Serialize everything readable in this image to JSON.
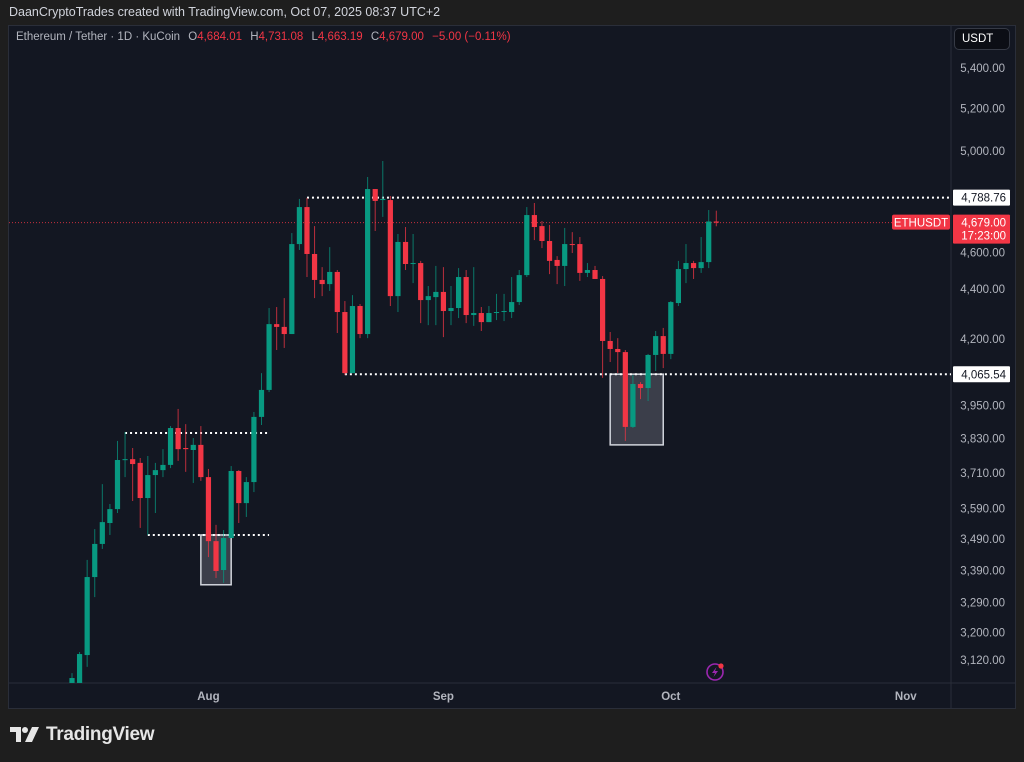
{
  "credit": "DaanCryptoTrades created with TradingView.com, Oct 07, 2025 08:37 UTC+2",
  "legend": {
    "symbol": "Ethereum / Tether · 1D · KuCoin",
    "open_label": "O",
    "open": "4,684.01",
    "high_label": "H",
    "high": "4,731.08",
    "low_label": "L",
    "low": "4,663.19",
    "close_label": "C",
    "close": "4,679.00",
    "change": "−5.00 (−0.11%)"
  },
  "currency": "USDT",
  "logo_text": "TradingView",
  "colors": {
    "up": "#089981",
    "down": "#f23645",
    "background": "#131722",
    "level_line": "#ffffff",
    "last_price": "#f23645",
    "alert_icon": "#9c27b0"
  },
  "icons": {
    "alert": "lightning-alert-icon",
    "logo": "tradingview-logo-icon"
  },
  "chart_data": {
    "type": "candlestick",
    "scale": "log",
    "ylim": [
      3070,
      5520
    ],
    "xlim": [
      "2025-07-13",
      "2025-11-05"
    ],
    "grid": false,
    "price_ticks": [
      5400,
      5200,
      5000,
      4600,
      4400,
      4200,
      3950,
      3830,
      3710,
      3590,
      3490,
      3390,
      3290,
      3200,
      3120
    ],
    "price_tick_labels": [
      "5,400.00",
      "5,200.00",
      "5,000.00",
      "4,600.00",
      "4,400.00",
      "4,200.00",
      "3,950.00",
      "3,830.00",
      "3,710.00",
      "3,590.00",
      "3,490.00",
      "3,390.00",
      "3,290.00",
      "3,200.00",
      "3,120.00"
    ],
    "time_ticks": [
      {
        "date": "2025-08-01",
        "label": "Aug"
      },
      {
        "date": "2025-09-01",
        "label": "Sep"
      },
      {
        "date": "2025-10-01",
        "label": "Oct"
      },
      {
        "date": "2025-11-01",
        "label": "Nov"
      }
    ],
    "last_price": {
      "value": 4679.0,
      "symbol": "ETHUSDT",
      "label": "4,679.00",
      "countdown": "17:23:00"
    },
    "levels": [
      {
        "value": 4788.76,
        "label": "4,788.76",
        "from": "2025-08-14"
      },
      {
        "value": 4065.54,
        "label": "4,065.54",
        "from": "2025-08-19"
      }
    ],
    "range_lines": [
      {
        "value": 3850,
        "from": "2025-07-21",
        "to": "2025-08-09"
      },
      {
        "value": 3503,
        "from": "2025-07-24",
        "to": "2025-08-09"
      }
    ],
    "boxes": [
      {
        "from": "2025-07-31",
        "to": "2025-08-04",
        "top": 3503,
        "bottom": 3345
      },
      {
        "from": "2025-09-23",
        "to": "2025-09-30",
        "top": 4066,
        "bottom": 3808
      }
    ],
    "columns": [
      "date",
      "open",
      "high",
      "low",
      "close"
    ],
    "candles": [
      [
        "2025-07-14",
        3054,
        3082,
        3034,
        3068
      ],
      [
        "2025-07-15",
        3054,
        3143,
        3034,
        3137
      ],
      [
        "2025-07-16",
        3134,
        3423,
        3100,
        3369
      ],
      [
        "2025-07-17",
        3369,
        3522,
        3307,
        3474
      ],
      [
        "2025-07-18",
        3474,
        3672,
        3458,
        3545
      ],
      [
        "2025-07-19",
        3542,
        3605,
        3503,
        3588
      ],
      [
        "2025-07-20",
        3588,
        3822,
        3575,
        3755
      ],
      [
        "2025-07-21",
        3755,
        3854,
        3696,
        3758
      ],
      [
        "2025-07-22",
        3758,
        3797,
        3615,
        3741
      ],
      [
        "2025-07-23",
        3745,
        3762,
        3526,
        3625
      ],
      [
        "2025-07-24",
        3625,
        3769,
        3503,
        3703
      ],
      [
        "2025-07-25",
        3703,
        3745,
        3575,
        3720
      ],
      [
        "2025-07-26",
        3720,
        3793,
        3696,
        3738
      ],
      [
        "2025-07-27",
        3738,
        3875,
        3727,
        3868
      ],
      [
        "2025-07-28",
        3868,
        3937,
        3752,
        3793
      ],
      [
        "2025-07-29",
        3797,
        3882,
        3714,
        3793
      ],
      [
        "2025-07-30",
        3790,
        3832,
        3676,
        3808
      ],
      [
        "2025-07-31",
        3808,
        3875,
        3683,
        3696
      ],
      [
        "2025-08-01",
        3696,
        3724,
        3432,
        3483
      ],
      [
        "2025-08-02",
        3483,
        3536,
        3366,
        3388
      ],
      [
        "2025-08-03",
        3391,
        3519,
        3351,
        3493
      ],
      [
        "2025-08-04",
        3493,
        3734,
        3493,
        3717
      ],
      [
        "2025-08-05",
        3717,
        3720,
        3542,
        3608
      ],
      [
        "2025-08-06",
        3608,
        3696,
        3562,
        3679
      ],
      [
        "2025-08-07",
        3679,
        3926,
        3645,
        3908
      ],
      [
        "2025-08-08",
        3908,
        4070,
        3879,
        4007
      ],
      [
        "2025-08-09",
        4007,
        4323,
        3999,
        4259
      ],
      [
        "2025-08-10",
        4259,
        4327,
        4158,
        4248
      ],
      [
        "2025-08-11",
        4248,
        4363,
        4166,
        4220
      ],
      [
        "2025-08-12",
        4220,
        4634,
        4220,
        4587
      ],
      [
        "2025-08-13",
        4587,
        4783,
        4562,
        4747
      ],
      [
        "2025-08-14",
        4747,
        4787,
        4449,
        4545
      ],
      [
        "2025-08-15",
        4545,
        4664,
        4363,
        4437
      ],
      [
        "2025-08-16",
        4437,
        4490,
        4371,
        4420
      ],
      [
        "2025-08-17",
        4420,
        4574,
        4392,
        4470
      ],
      [
        "2025-08-18",
        4470,
        4478,
        4224,
        4307
      ],
      [
        "2025-08-19",
        4307,
        4351,
        4063,
        4070
      ],
      [
        "2025-08-20",
        4070,
        4375,
        4070,
        4331
      ],
      [
        "2025-08-21",
        4331,
        4339,
        4204,
        4220
      ],
      [
        "2025-08-22",
        4220,
        4881,
        4204,
        4827
      ],
      [
        "2025-08-23",
        4827,
        4827,
        4643,
        4774
      ],
      [
        "2025-08-24",
        4778,
        4954,
        4704,
        4783
      ],
      [
        "2025-08-25",
        4778,
        4796,
        4331,
        4371
      ],
      [
        "2025-08-26",
        4371,
        4630,
        4307,
        4596
      ],
      [
        "2025-08-27",
        4596,
        4660,
        4478,
        4503
      ],
      [
        "2025-08-28",
        4503,
        4630,
        4424,
        4507
      ],
      [
        "2025-08-29",
        4507,
        4516,
        4263,
        4355
      ],
      [
        "2025-08-30",
        4355,
        4412,
        4255,
        4371
      ],
      [
        "2025-08-31",
        4367,
        4495,
        4255,
        4388
      ],
      [
        "2025-09-01",
        4388,
        4490,
        4208,
        4311
      ],
      [
        "2025-09-02",
        4311,
        4412,
        4255,
        4323
      ],
      [
        "2025-09-03",
        4323,
        4486,
        4283,
        4449
      ],
      [
        "2025-09-04",
        4449,
        4478,
        4263,
        4295
      ],
      [
        "2025-09-05",
        4295,
        4490,
        4252,
        4303
      ],
      [
        "2025-09-06",
        4303,
        4327,
        4232,
        4267
      ],
      [
        "2025-09-07",
        4267,
        4331,
        4267,
        4303
      ],
      [
        "2025-09-08",
        4303,
        4380,
        4275,
        4307
      ],
      [
        "2025-09-09",
        4307,
        4380,
        4271,
        4311
      ],
      [
        "2025-09-10",
        4307,
        4449,
        4283,
        4347
      ],
      [
        "2025-09-11",
        4347,
        4478,
        4335,
        4457
      ],
      [
        "2025-09-12",
        4457,
        4747,
        4449,
        4712
      ],
      [
        "2025-09-13",
        4712,
        4765,
        4604,
        4660
      ],
      [
        "2025-09-14",
        4664,
        4686,
        4570,
        4600
      ],
      [
        "2025-09-15",
        4600,
        4669,
        4461,
        4516
      ],
      [
        "2025-09-16",
        4520,
        4536,
        4420,
        4495
      ],
      [
        "2025-09-17",
        4495,
        4656,
        4412,
        4587
      ],
      [
        "2025-09-18",
        4587,
        4638,
        4549,
        4583
      ],
      [
        "2025-09-19",
        4587,
        4617,
        4433,
        4466
      ],
      [
        "2025-09-20",
        4466,
        4507,
        4449,
        4478
      ],
      [
        "2025-09-21",
        4478,
        4495,
        4441,
        4441
      ],
      [
        "2025-09-22",
        4441,
        4453,
        4052,
        4193
      ],
      [
        "2025-09-23",
        4193,
        4228,
        4112,
        4162
      ],
      [
        "2025-09-24",
        4162,
        4204,
        4070,
        4150
      ],
      [
        "2025-09-25",
        4150,
        4158,
        3822,
        3872
      ],
      [
        "2025-09-26",
        3872,
        4063,
        3868,
        4029
      ],
      [
        "2025-09-27",
        4029,
        4036,
        3973,
        4014
      ],
      [
        "2025-09-28",
        4014,
        4143,
        3966,
        4139
      ],
      [
        "2025-09-29",
        4139,
        4232,
        4078,
        4212
      ],
      [
        "2025-09-30",
        4212,
        4244,
        4089,
        4143
      ],
      [
        "2025-10-01",
        4143,
        4351,
        4123,
        4347
      ],
      [
        "2025-10-02",
        4343,
        4516,
        4331,
        4482
      ],
      [
        "2025-10-03",
        4482,
        4587,
        4424,
        4507
      ],
      [
        "2025-10-04",
        4507,
        4516,
        4441,
        4486
      ],
      [
        "2025-10-05",
        4486,
        4617,
        4466,
        4511
      ],
      [
        "2025-10-06",
        4511,
        4734,
        4486,
        4684
      ],
      [
        "2025-10-07",
        4684.01,
        4731.08,
        4663.19,
        4679.0
      ]
    ]
  }
}
